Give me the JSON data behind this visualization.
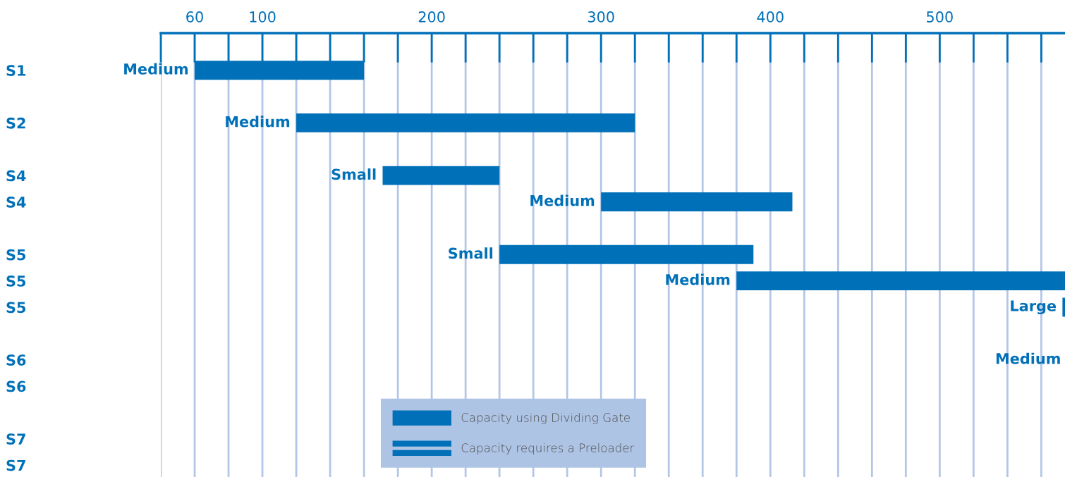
{
  "chart_data": {
    "type": "bar",
    "orientation": "horizontal",
    "categories": [
      "S1",
      null,
      "S2",
      null,
      "S4",
      "S4",
      null,
      "S5",
      "S5",
      "S5",
      null,
      "S6",
      "S6",
      null,
      "S7",
      "S7"
    ],
    "series": [
      {
        "name": "Capacity using Dividing Gate",
        "color": "#0070b8",
        "base": [
          60,
          null,
          120,
          null,
          171,
          300,
          null,
          240,
          380,
          572.5,
          null,
          null,
          null,
          null,
          null,
          null
        ],
        "values": [
          100,
          null,
          200,
          null,
          69,
          113,
          null,
          150,
          194,
          1.5,
          null,
          null,
          null,
          null,
          null,
          null
        ],
        "value_labels": [
          "Medium",
          null,
          "Medium",
          null,
          "Small",
          "Medium",
          null,
          "Small",
          "Medium",
          "Large",
          null,
          "Medium",
          null,
          null,
          null,
          null
        ]
      },
      {
        "name": "Capacity requires a Preloader",
        "color": "#0070b8",
        "values": [
          null,
          null,
          null,
          null,
          null,
          null,
          null,
          null,
          null,
          null,
          null,
          null,
          null,
          null,
          null,
          null
        ]
      }
    ],
    "xlim": [
      40,
      574
    ],
    "xticks": [
      {
        "value": 40,
        "label": null
      },
      60,
      {
        "value": 80,
        "label": null
      },
      100,
      {
        "value": 120,
        "label": null
      },
      {
        "value": 140,
        "label": null
      },
      {
        "value": 160,
        "label": null
      },
      {
        "value": 180,
        "label": null
      },
      200,
      {
        "value": 220,
        "label": null
      },
      {
        "value": 240,
        "label": null
      },
      {
        "value": 260,
        "label": null
      },
      {
        "value": 280,
        "label": null
      },
      300,
      {
        "value": 320,
        "label": null
      },
      {
        "value": 340,
        "label": null
      },
      {
        "value": 360,
        "label": null
      },
      {
        "value": 380,
        "label": null
      },
      400,
      {
        "value": 420,
        "label": null
      },
      {
        "value": 440,
        "label": null
      },
      {
        "value": 460,
        "label": null
      },
      {
        "value": 480,
        "label": null
      },
      500,
      {
        "value": 520,
        "label": null
      },
      {
        "value": 540,
        "label": null
      },
      {
        "value": 560,
        "label": null
      }
    ],
    "grid": "x",
    "legend": "bottom"
  }
}
